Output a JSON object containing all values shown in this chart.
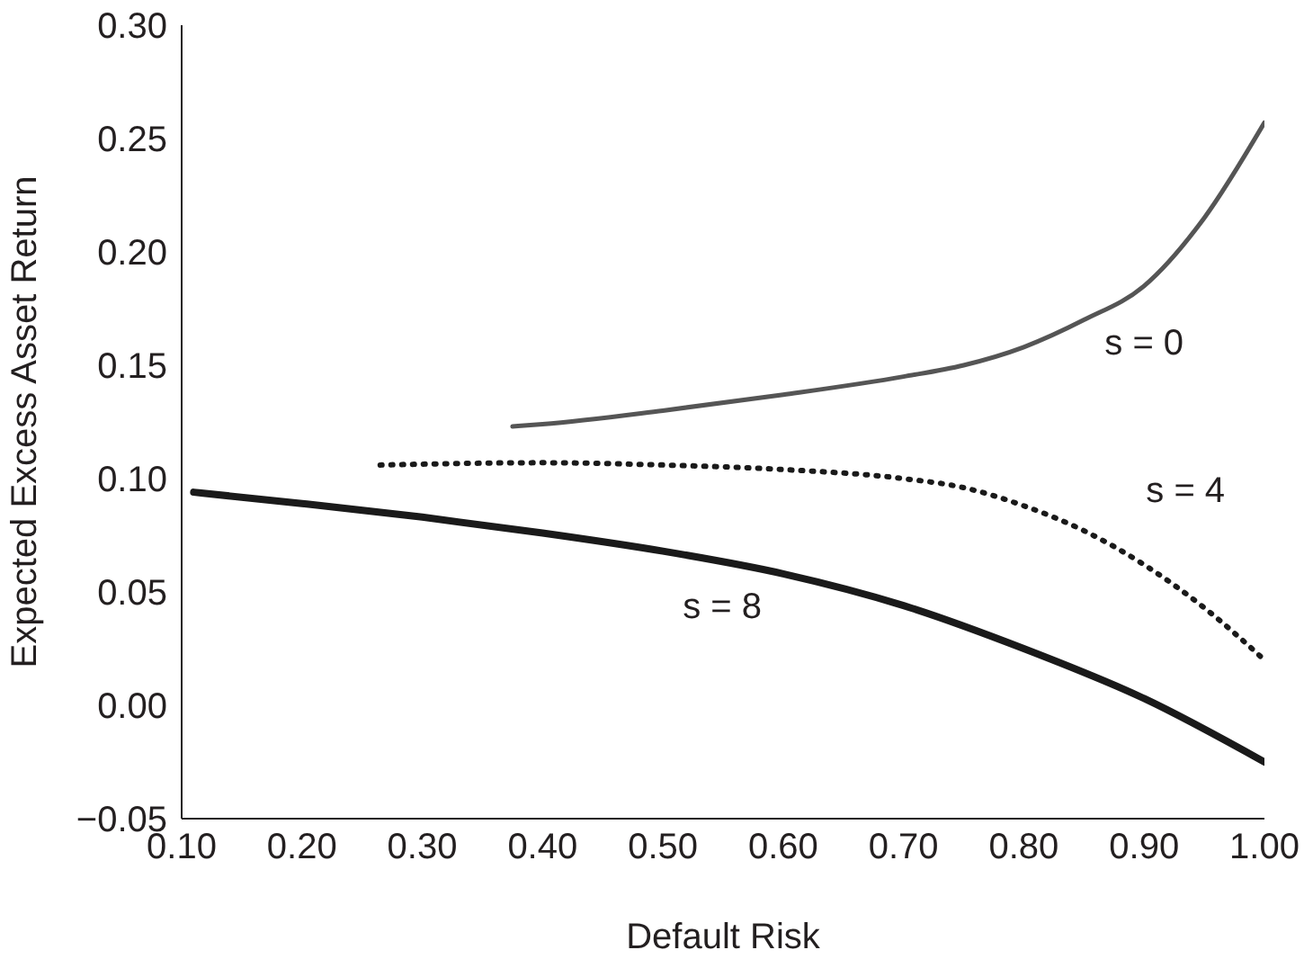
{
  "chart_data": {
    "type": "line",
    "xlabel": "Default Risk",
    "ylabel": "Expected Excess Asset Return",
    "xlim": [
      0.1,
      1.0
    ],
    "xticks": [
      {
        "value": 0.1,
        "label": "0.10"
      },
      {
        "value": 0.2,
        "label": "0.20"
      },
      {
        "value": 0.3,
        "label": "0.30"
      },
      {
        "value": 0.4,
        "label": "0.40"
      },
      {
        "value": 0.5,
        "label": "0.50"
      },
      {
        "value": 0.6,
        "label": "0.60"
      },
      {
        "value": 0.7,
        "label": "0.70"
      },
      {
        "value": 0.8,
        "label": "0.80"
      },
      {
        "value": 0.9,
        "label": "0.90"
      },
      {
        "value": 1.0,
        "label": "1.00"
      }
    ],
    "ylim": [
      -0.05,
      0.3
    ],
    "yticks": [
      {
        "value": -0.05,
        "label": "−0.05"
      },
      {
        "value": 0,
        "label": "0.00"
      },
      {
        "value": 0.05,
        "label": "0.05"
      },
      {
        "value": 0.1,
        "label": "0.10"
      },
      {
        "value": 0.15,
        "label": "0.15"
      },
      {
        "value": 0.2,
        "label": "0.20"
      },
      {
        "value": 0.25,
        "label": "0.25"
      },
      {
        "value": 0.3,
        "label": "0.30"
      }
    ],
    "grid": false,
    "legend": false,
    "marker": "none",
    "series": [
      {
        "name": "s = 0",
        "color": "#555555",
        "line_style": "solid",
        "x": [
          0.375,
          0.4,
          0.5,
          0.6,
          0.7,
          0.75,
          0.8,
          0.85,
          0.9,
          0.95,
          1.0
        ],
        "values": [
          0.123,
          0.124,
          0.13,
          0.137,
          0.145,
          0.15,
          0.158,
          0.17,
          0.185,
          0.215,
          0.257
        ]
      },
      {
        "name": "s = 4",
        "color": "#1a1a1a",
        "line_style": "dotted",
        "x": [
          0.265,
          0.4,
          0.5,
          0.6,
          0.7,
          0.75,
          0.8,
          0.85,
          0.9,
          0.95,
          1.0
        ],
        "values": [
          0.106,
          0.107,
          0.106,
          0.104,
          0.1,
          0.096,
          0.088,
          0.077,
          0.062,
          0.043,
          0.02
        ]
      },
      {
        "name": "s = 8",
        "color": "#1a1a1a",
        "line_style": "solid",
        "x": [
          0.11,
          0.2,
          0.3,
          0.4,
          0.5,
          0.6,
          0.7,
          0.8,
          0.9,
          1.0
        ],
        "values": [
          0.094,
          0.089,
          0.083,
          0.076,
          0.068,
          0.058,
          0.044,
          0.025,
          0.003,
          -0.025
        ]
      }
    ]
  }
}
